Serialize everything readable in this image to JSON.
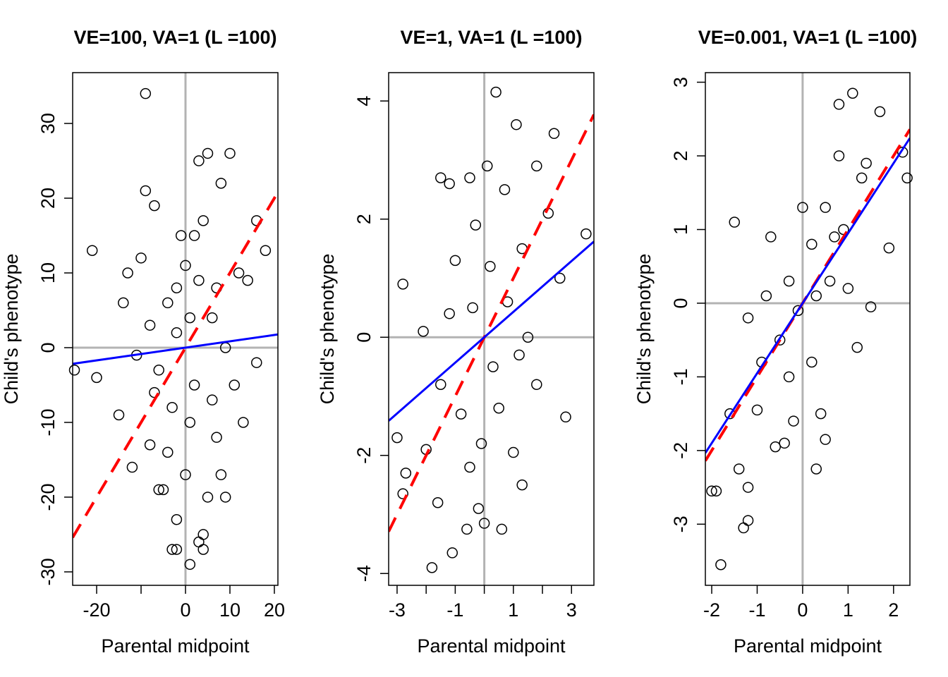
{
  "chart_data": [
    {
      "type": "scatter",
      "title": "VE=100, VA=1 (L =100)",
      "x_label": "Parental midpoint",
      "y_label": "Child's phenotype",
      "xlim": [
        -25.4,
        20.8
      ],
      "ylim": [
        -31.8,
        36.8
      ],
      "xticks": [
        {
          "value": -20,
          "label": "-20"
        },
        {
          "value": -10,
          "label": null
        },
        0,
        10,
        20
      ],
      "yticks": [
        -30,
        -20,
        -10,
        0,
        10,
        20,
        30
      ],
      "hline": 0,
      "vline": 0,
      "color": "#000000",
      "x": [
        -9,
        -21,
        -25,
        -20,
        -9,
        -7,
        -2,
        -2,
        -3,
        1,
        4,
        3,
        4,
        16,
        18,
        10,
        5,
        3,
        8,
        14,
        16,
        13,
        -15,
        -12,
        -8,
        -5,
        -6,
        0,
        5,
        8,
        -13,
        -10,
        -4,
        -2,
        1,
        3,
        6,
        9,
        11,
        7,
        -3,
        -6,
        -11,
        -14,
        2,
        0,
        4,
        -1,
        12,
        -8,
        7,
        1,
        -4,
        9,
        2,
        6,
        -7,
        -2
      ],
      "values": [
        34,
        13,
        -3,
        -4,
        21,
        19,
        -23,
        -27,
        -27,
        -29,
        -27,
        -26,
        -25,
        17,
        13,
        26,
        26,
        25,
        22,
        9,
        -2,
        -10,
        -9,
        -16,
        -13,
        -19,
        -19,
        -17,
        -20,
        -17,
        10,
        12,
        6,
        2,
        4,
        9,
        4,
        0,
        -5,
        -12,
        -8,
        -3,
        -1,
        6,
        -5,
        11,
        17,
        15,
        10,
        3,
        8,
        -10,
        -14,
        -20,
        15,
        -7,
        -6,
        8
      ],
      "lines": [
        {
          "slope": 1,
          "intercept": 0,
          "color": "#ff0000",
          "dashed": true
        },
        {
          "slope": 0.085,
          "intercept": 0,
          "color": "#0000ff",
          "dashed": false
        }
      ]
    },
    {
      "type": "scatter",
      "title": "VE=1, VA=1 (L =100)",
      "x_label": "Parental midpoint",
      "y_label": "Child's phenotype",
      "xlim": [
        -3.29,
        3.77
      ],
      "ylim": [
        -4.2,
        4.48
      ],
      "xticks": [
        -3,
        {
          "value": -2,
          "label": null
        },
        -1,
        {
          "value": 0,
          "label": null
        },
        1,
        {
          "value": 2,
          "label": null
        },
        3
      ],
      "yticks": [
        -4,
        -2,
        0,
        2,
        4
      ],
      "hline": 0,
      "vline": 0,
      "color": "#000000",
      "x": [
        0.4,
        1.1,
        2.4,
        -0.5,
        -1.5,
        -1.2,
        3.5,
        2.8,
        -3,
        -2.7,
        -2.8,
        -1.8,
        -1.1,
        -0.6,
        0,
        0.6,
        -1.6,
        -0.2,
        1,
        1.8,
        2.6,
        2.2,
        1.8,
        0.7,
        -0.3,
        -1,
        -2.1,
        -2.8,
        -1.5,
        -0.8,
        0.3,
        0.8,
        1.3,
        -0.4,
        0.2,
        -1.2,
        1.5,
        -0.1,
        0.5,
        1.2,
        -2,
        0.1,
        1.3,
        -0.5
      ],
      "values": [
        4.15,
        3.6,
        3.45,
        2.7,
        2.7,
        2.6,
        1.75,
        -1.35,
        -1.7,
        -2.3,
        -2.65,
        -3.9,
        -3.65,
        -3.25,
        -3.15,
        -3.25,
        -2.8,
        -2.9,
        -1.95,
        -0.8,
        1,
        2.1,
        2.9,
        2.5,
        1.9,
        1.3,
        0.1,
        0.9,
        -0.8,
        -1.3,
        -0.5,
        0.6,
        1.5,
        0.5,
        1.2,
        0.4,
        0,
        -1.8,
        -1.2,
        -0.3,
        -1.9,
        2.9,
        -2.5,
        -2.2
      ],
      "lines": [
        {
          "slope": 1,
          "intercept": 0,
          "color": "#ff0000",
          "dashed": true
        },
        {
          "slope": 0.43,
          "intercept": 0,
          "color": "#0000ff",
          "dashed": false
        }
      ]
    },
    {
      "type": "scatter",
      "title": "VE=0.001, VA=1 (L =100)",
      "x_label": "Parental midpoint",
      "y_label": "Child's phenotype",
      "xlim": [
        -2.14,
        2.36
      ],
      "ylim": [
        -3.83,
        3.13
      ],
      "xticks": [
        -2,
        -1,
        0,
        1,
        2
      ],
      "yticks": [
        -3,
        -2,
        -1,
        0,
        1,
        2,
        3
      ],
      "hline": 0,
      "vline": 0,
      "color": "#000000",
      "x": [
        -1.8,
        -1.2,
        -1.3,
        -1.9,
        -2,
        -1.2,
        -1.4,
        -1.5,
        1.1,
        0.8,
        1.7,
        2.2,
        2.3,
        1.9,
        1.5,
        1.2,
        0.3,
        0.5,
        -0.4,
        -0.6,
        -1,
        -1.6,
        -0.2,
        0.4,
        0.2,
        -0.5,
        -0.8,
        -1.2,
        -0.3,
        0.2,
        0.5,
        0.9,
        1.3,
        -0.7,
        0,
        0.6,
        1,
        -0.1,
        0.3,
        0.8,
        1.4,
        -0.3,
        -0.9,
        0.7
      ],
      "values": [
        -3.55,
        -2.95,
        -3.05,
        -2.55,
        -2.55,
        -2.5,
        -2.25,
        1.1,
        2.85,
        2.7,
        2.6,
        2.05,
        1.7,
        0.75,
        -0.05,
        -0.6,
        -2.25,
        -1.85,
        -1.9,
        -1.95,
        -1.45,
        -1.5,
        -1.6,
        -1.5,
        -0.8,
        -0.5,
        0.1,
        -0.2,
        0.3,
        0.8,
        1.3,
        1,
        1.7,
        0.9,
        1.3,
        0.3,
        0.2,
        -0.1,
        0.1,
        2,
        1.9,
        -1,
        -0.8,
        0.9
      ],
      "lines": [
        {
          "slope": 1,
          "intercept": 0,
          "color": "#ff0000",
          "dashed": true
        },
        {
          "slope": 0.95,
          "intercept": 0,
          "color": "#0000ff",
          "dashed": false
        }
      ]
    }
  ]
}
